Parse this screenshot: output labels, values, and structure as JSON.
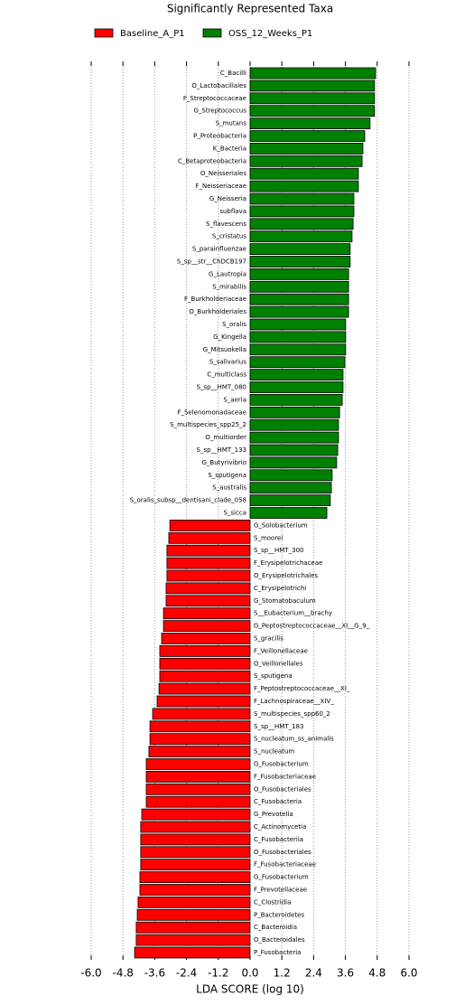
{
  "chart_data": {
    "type": "barh",
    "title": "Significantly Represented Taxa",
    "xlabel": "LDA SCORE (log 10)",
    "categories": [
      "C_Bacilli",
      "O_Lactobacillales",
      "F_Streptococcaceae",
      "G_Streptococcus",
      "S_mutans",
      "P_Proteobacteria",
      "K_Bacteria",
      "C_Betaproteobacteria",
      "O_Neisseriales",
      "F_Neisseriaceae",
      "G_Neisseria",
      "subflava",
      "S_flavescens",
      "S_cristatus",
      "S_parainfluenzae",
      "S_sp__str__ChDCB197",
      "G_Lautropia",
      "S_mirabilis",
      "F_Burkholderiaceae",
      "O_Burkholderiales",
      "S_oralis",
      "G_Kingella",
      "G_Mitsuokella",
      "S_salivarius",
      "C_multiclass",
      "S_sp__HMT_080",
      "S_aeria",
      "F_Selenomonadaceae",
      "S_multispecies_spp25_2",
      "O_multiorder",
      "S_sp__HMT_133",
      "G_Butyrivibrio",
      "S_sputigena",
      "S_australis",
      "S_oralis_subsp__dentisani_clade_058",
      "S_sicca",
      "G_Solobacterium",
      "S_moorei",
      "S_sp__HMT_300",
      "F_Erysipelotrichaceae",
      "O_Erysipelotrichales",
      "C_Erysipelotrichi",
      "G_Stomatobaculum",
      "S__Eubacterium__brachy",
      "G_Peptostreptococcaceae__XI__G_9_",
      "S_gracilis",
      "F_Veillonellaceae",
      "O_Veillonellales",
      "S_sputigena",
      "F_Peptostreptococcaceae__XI_",
      "F_Lachnospiraceae__XIV_",
      "S_multispecies_spp60_2",
      "S_sp__HMT_183",
      "S_nucleatum_ss_animalis",
      "S_nucleatum",
      "G_Fusobacterium",
      "F_Fusobacteriaceae",
      "O_Fusobacteriales",
      "C_Fusobacteria",
      "G_Prevotella",
      "C_Actinomycetia",
      "C_Fusobacteriia",
      "O_Fusobacteriales",
      "F_Fusobacteriaceae",
      "G_Fusobacterium",
      "F_Prevotellaceae",
      "C_Clostridia",
      "P_Bacteroidetes",
      "C_Bacteroidia",
      "O_Bacteroidales",
      "P_Fusobacteria"
    ],
    "series": [
      {
        "name": "Baseline_A_P1",
        "color": "#ff0000",
        "values": [
          null,
          null,
          null,
          null,
          null,
          null,
          null,
          null,
          null,
          null,
          null,
          null,
          null,
          null,
          null,
          null,
          null,
          null,
          null,
          null,
          null,
          null,
          null,
          null,
          null,
          null,
          null,
          null,
          null,
          null,
          null,
          null,
          null,
          null,
          null,
          null,
          -3.03,
          -3.07,
          -3.14,
          -3.14,
          -3.14,
          -3.17,
          -3.17,
          -3.27,
          -3.27,
          -3.34,
          -3.41,
          -3.41,
          -3.41,
          -3.44,
          -3.51,
          -3.68,
          -3.78,
          -3.78,
          -3.82,
          -3.92,
          -3.92,
          -3.92,
          -3.92,
          -4.09,
          -4.13,
          -4.13,
          -4.13,
          -4.13,
          -4.16,
          -4.16,
          -4.23,
          -4.26,
          -4.3,
          -4.3,
          -4.36
        ]
      },
      {
        "name": "OSS_12_Weeks_P1",
        "color": "#008000",
        "values": [
          4.74,
          4.7,
          4.7,
          4.7,
          4.53,
          4.33,
          4.26,
          4.23,
          4.09,
          4.09,
          3.92,
          3.92,
          3.89,
          3.85,
          3.78,
          3.78,
          3.72,
          3.72,
          3.72,
          3.72,
          3.61,
          3.61,
          3.61,
          3.58,
          3.51,
          3.51,
          3.48,
          3.38,
          3.34,
          3.34,
          3.31,
          3.27,
          3.1,
          3.07,
          3.03,
          2.9,
          null,
          null,
          null,
          null,
          null,
          null,
          null,
          null,
          null,
          null,
          null,
          null,
          null,
          null,
          null,
          null,
          null,
          null,
          null,
          null,
          null,
          null,
          null,
          null,
          null,
          null,
          null,
          null,
          null,
          null,
          null,
          null,
          null,
          null,
          null
        ]
      }
    ],
    "xlim": [
      -6.0,
      6.0
    ],
    "xticks": [
      {
        "value": -6.0,
        "label": "-6.0"
      },
      {
        "value": -4.8,
        "label": "-4.8"
      },
      {
        "value": -3.6,
        "label": "-3.6"
      },
      {
        "value": -2.4,
        "label": "-2.4"
      },
      {
        "value": -1.2,
        "label": "-1.2"
      },
      {
        "value": 0.0,
        "label": "0.0"
      },
      {
        "value": 1.2,
        "label": "1.2"
      },
      {
        "value": 2.4,
        "label": "2.4"
      },
      {
        "value": 3.6,
        "label": "3.6"
      },
      {
        "value": 4.8,
        "label": "4.8"
      },
      {
        "value": 6.0,
        "label": "6.0"
      }
    ],
    "grid": true
  }
}
